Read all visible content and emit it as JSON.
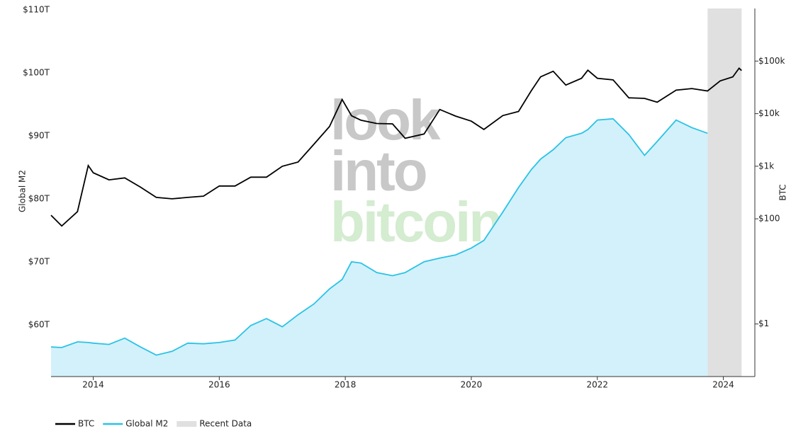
{
  "chart_data": {
    "type": "line",
    "y_label": "Global M2",
    "y2_label": "BTC",
    "watermark": [
      "look",
      "into",
      "bitcoin"
    ],
    "x": [
      2013.33,
      2013.5,
      2013.75,
      2013.92,
      2014.0,
      2014.25,
      2014.5,
      2014.75,
      2015.0,
      2015.25,
      2015.5,
      2015.75,
      2016.0,
      2016.25,
      2016.5,
      2016.75,
      2017.0,
      2017.25,
      2017.5,
      2017.75,
      2017.95,
      2018.1,
      2018.25,
      2018.5,
      2018.75,
      2018.95,
      2019.25,
      2019.5,
      2019.75,
      2020.0,
      2020.2,
      2020.5,
      2020.75,
      2020.95,
      2021.1,
      2021.3,
      2021.5,
      2021.75,
      2021.85,
      2022.0,
      2022.25,
      2022.5,
      2022.75,
      2022.95,
      2023.25,
      2023.5,
      2023.75,
      2023.95,
      2024.15,
      2024.25,
      2024.29
    ],
    "series": [
      {
        "name": "BTC",
        "color": "#000000",
        "axis": "y2",
        "values": [
          117,
          73,
          137,
          1030,
          750,
          550,
          600,
          400,
          255,
          240,
          255,
          270,
          420,
          420,
          620,
          620,
          1000,
          1200,
          2600,
          5700,
          18600,
          9100,
          7500,
          6500,
          6400,
          3400,
          4100,
          12000,
          9000,
          7200,
          5000,
          9200,
          11000,
          27000,
          50000,
          64000,
          35000,
          47000,
          67000,
          47000,
          44000,
          20000,
          19500,
          16500,
          28000,
          30000,
          27000,
          42000,
          50000,
          73000,
          66000
        ]
      },
      {
        "name": "Global M2",
        "color": "#29c3e6",
        "fill": "#d3f1fa",
        "values": [
          56.5,
          56.4,
          57.3,
          57.2,
          57.1,
          56.9,
          57.9,
          56.5,
          55.2,
          55.8,
          57.1,
          57.0,
          57.2,
          57.6,
          59.9,
          61.0,
          59.7,
          61.6,
          63.3,
          65.7,
          67.2,
          70.0,
          69.8,
          68.3,
          67.8,
          68.3,
          70.0,
          70.6,
          71.1,
          72.2,
          73.4,
          77.9,
          81.8,
          84.6,
          86.3,
          87.8,
          89.7,
          90.4,
          91.0,
          92.5,
          92.7,
          90.2,
          86.9,
          89.1,
          92.5,
          91.3,
          90.4,
          null,
          null,
          null,
          null
        ]
      }
    ],
    "band": {
      "name": "Recent Data",
      "color": "#e0e0e0",
      "x": [
        2023.75,
        2024.29
      ]
    },
    "xlim": [
      2013.33,
      2024.5
    ],
    "xticks": [
      2014,
      2016,
      2018,
      2020,
      2022,
      2024
    ],
    "ylim": [
      51.8,
      110.2
    ],
    "yticks": [
      {
        "value": 60,
        "label": "$60T"
      },
      {
        "value": 70,
        "label": "$70T"
      },
      {
        "value": 80,
        "label": "$80T"
      },
      {
        "value": 90,
        "label": "$90T"
      },
      {
        "value": 100,
        "label": "$100T"
      },
      {
        "value": 110,
        "label": "$110T"
      }
    ],
    "y2lim": [
      0.1,
      1000000
    ],
    "y2log": true,
    "y2ticks": [
      {
        "value": 1,
        "label": "$1"
      },
      {
        "value": 100,
        "label": "$100"
      },
      {
        "value": 1000,
        "label": "$1k"
      },
      {
        "value": 10000,
        "label": "$10k"
      },
      {
        "value": 100000,
        "label": "$100k"
      }
    ],
    "legend": "bottom-left"
  }
}
